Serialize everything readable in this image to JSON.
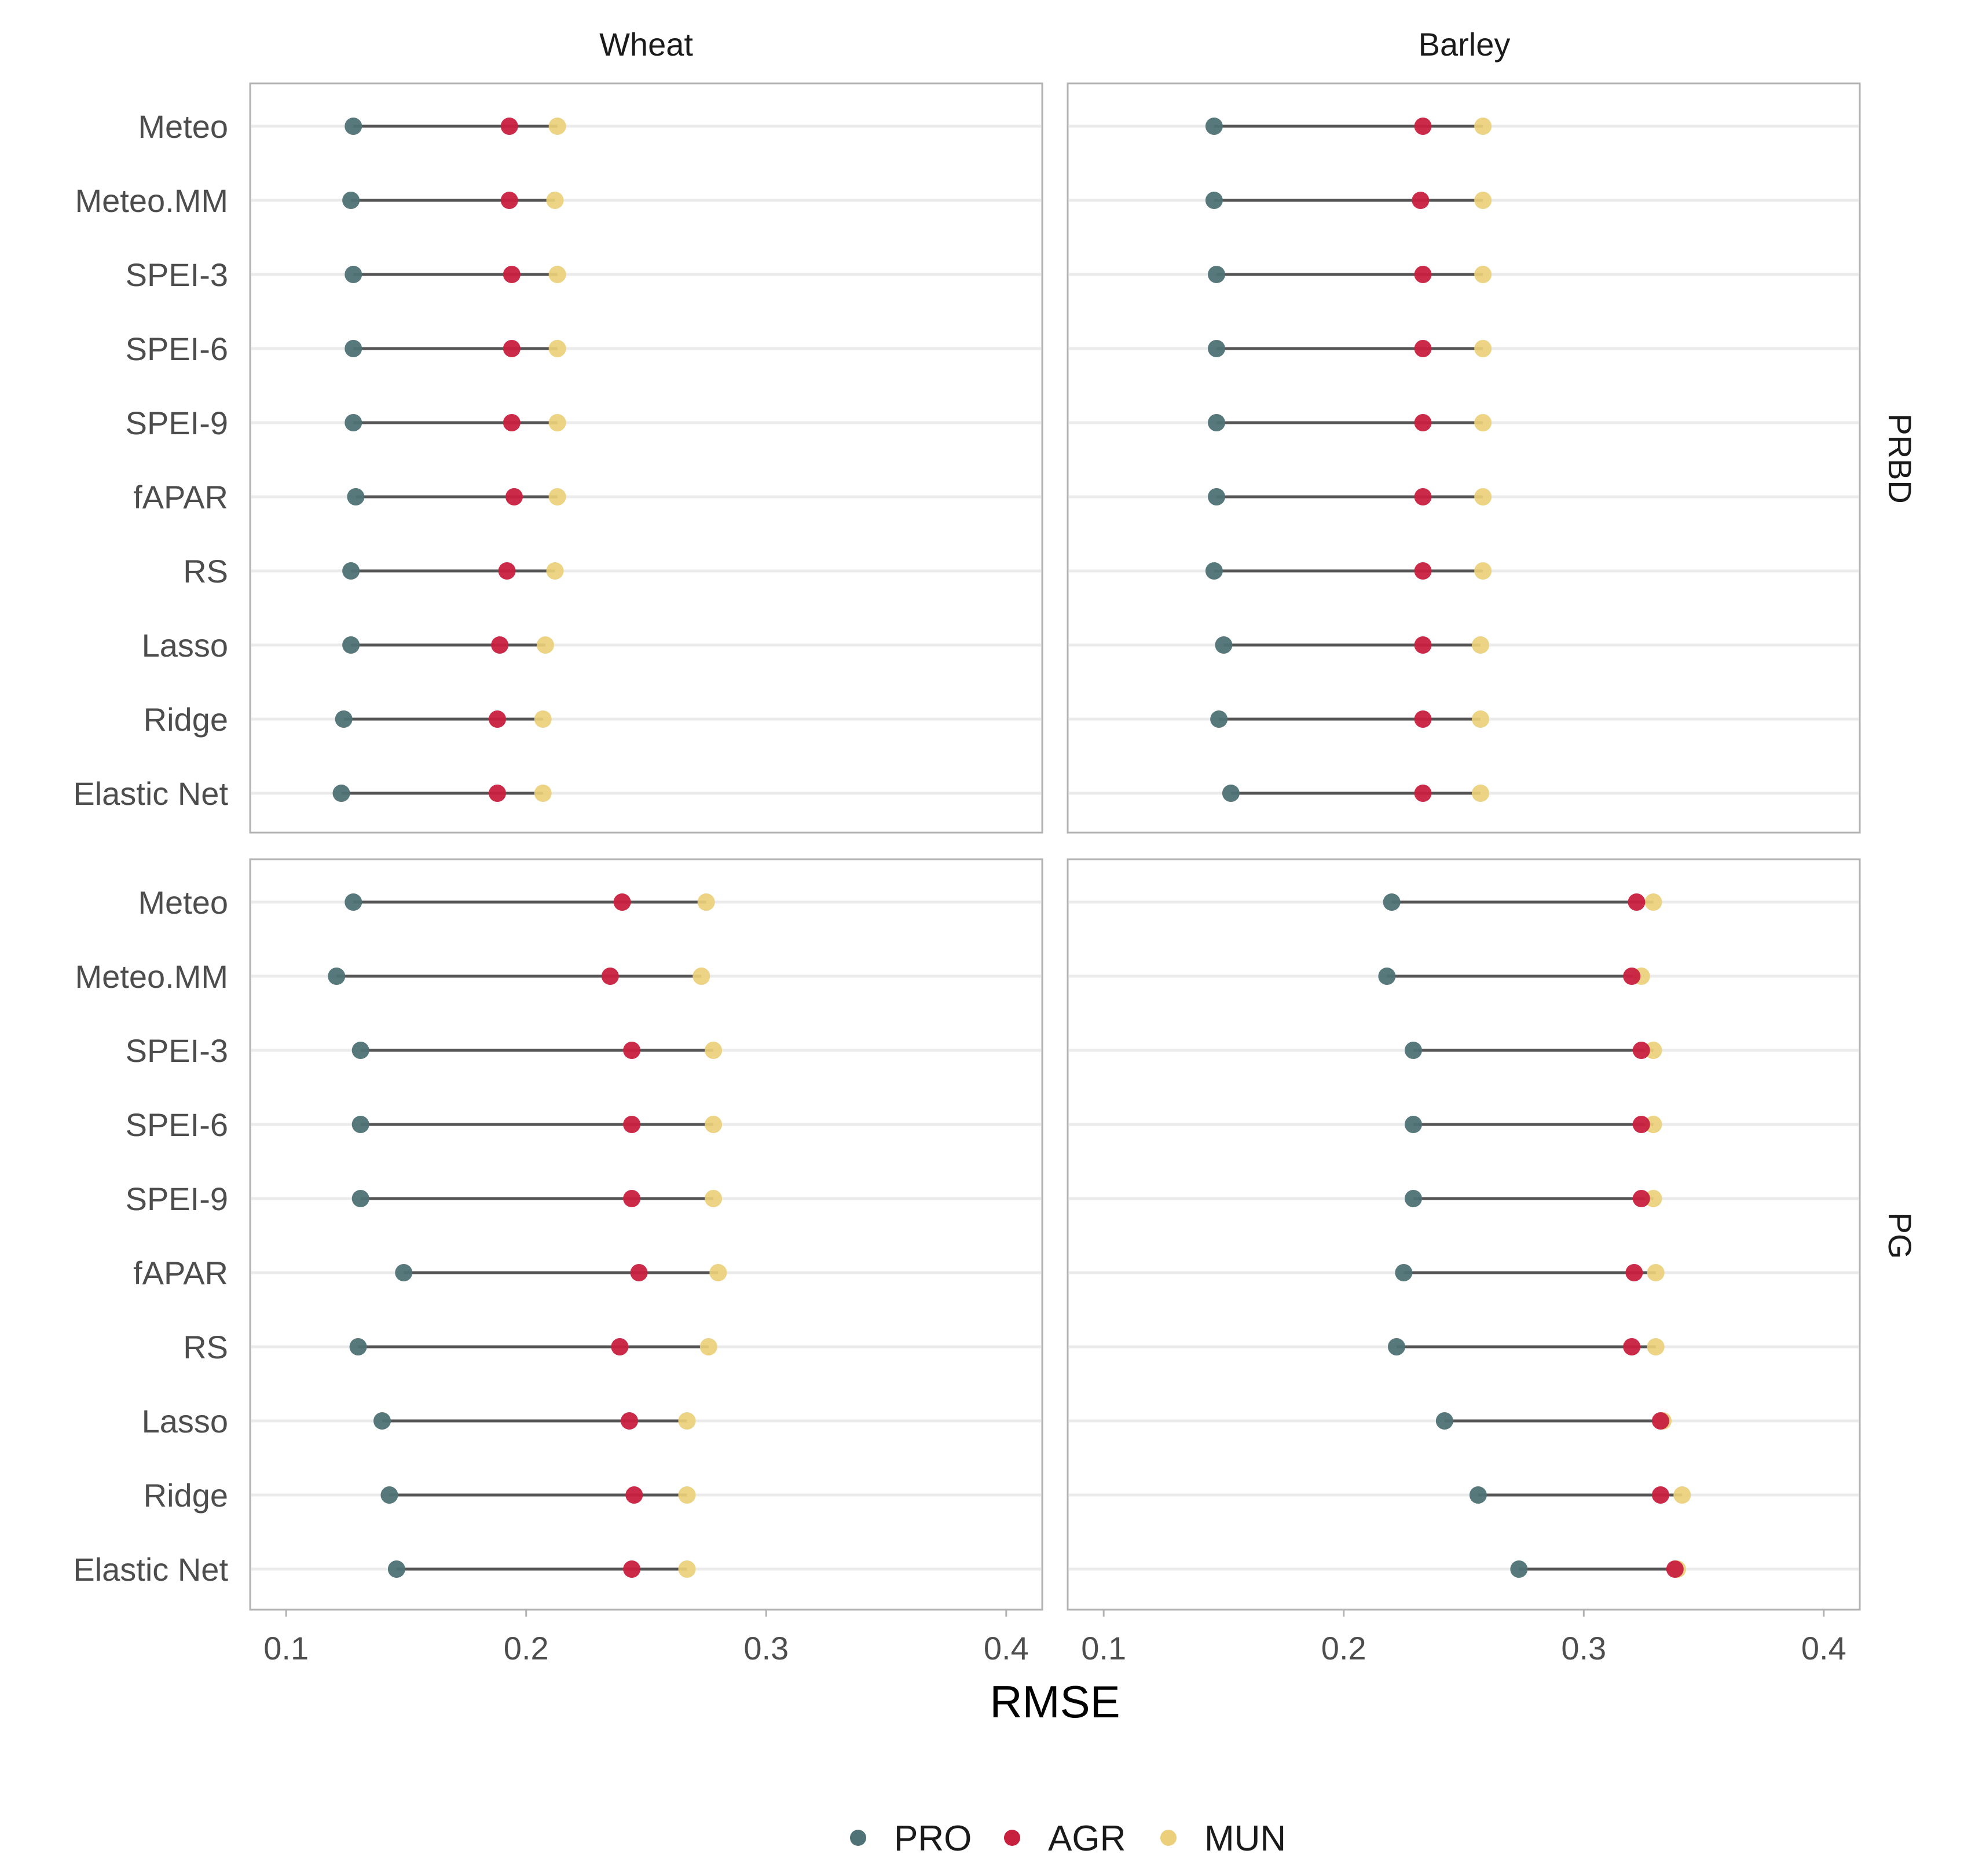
{
  "chart_data": {
    "type": "dumbbell",
    "xlabel": "RMSE",
    "xlim": [
      0.085,
      0.415
    ],
    "xticks": [
      0.1,
      0.2,
      0.3,
      0.4
    ],
    "xtick_labels": [
      "0.1",
      "0.2",
      "0.3",
      "0.4"
    ],
    "columns": [
      "Wheat",
      "Barley"
    ],
    "rows": [
      "PRBD",
      "PG"
    ],
    "methods": [
      "Meteo",
      "Meteo.MM",
      "SPEI-3",
      "SPEI-6",
      "SPEI-9",
      "fAPAR",
      "RS",
      "Lasso",
      "Ridge",
      "Elastic Net"
    ],
    "series": [
      {
        "name": "PRO",
        "color": "#4e7275"
      },
      {
        "name": "AGR",
        "color": "#c8203f"
      },
      {
        "name": "MUN",
        "color": "#ebcf7a"
      }
    ],
    "legend": {
      "position": "bottom",
      "items": [
        "PRO",
        "AGR",
        "MUN"
      ]
    },
    "panels": [
      {
        "column": "Wheat",
        "row": "PRBD",
        "PRO": [
          0.128,
          0.127,
          0.128,
          0.128,
          0.128,
          0.129,
          0.127,
          0.127,
          0.124,
          0.123
        ],
        "AGR": [
          0.193,
          0.193,
          0.194,
          0.194,
          0.194,
          0.195,
          0.192,
          0.189,
          0.188,
          0.188
        ],
        "MUN": [
          0.213,
          0.212,
          0.213,
          0.213,
          0.213,
          0.213,
          0.212,
          0.208,
          0.207,
          0.207
        ]
      },
      {
        "column": "Barley",
        "row": "PRBD",
        "PRO": [
          0.146,
          0.146,
          0.147,
          0.147,
          0.147,
          0.147,
          0.146,
          0.15,
          0.148,
          0.153
        ],
        "AGR": [
          0.233,
          0.232,
          0.233,
          0.233,
          0.233,
          0.233,
          0.233,
          0.233,
          0.233,
          0.233
        ],
        "MUN": [
          0.258,
          0.258,
          0.258,
          0.258,
          0.258,
          0.258,
          0.258,
          0.257,
          0.257,
          0.257
        ]
      },
      {
        "column": "Wheat",
        "row": "PG",
        "PRO": [
          0.128,
          0.121,
          0.131,
          0.131,
          0.131,
          0.149,
          0.13,
          0.14,
          0.143,
          0.146
        ],
        "AGR": [
          0.24,
          0.235,
          0.244,
          0.244,
          0.244,
          0.247,
          0.239,
          0.243,
          0.245,
          0.244
        ],
        "MUN": [
          0.275,
          0.273,
          0.278,
          0.278,
          0.278,
          0.28,
          0.276,
          0.267,
          0.267,
          0.267
        ]
      },
      {
        "column": "Barley",
        "row": "PG",
        "PRO": [
          0.22,
          0.218,
          0.229,
          0.229,
          0.229,
          0.225,
          0.222,
          0.242,
          0.256,
          0.273
        ],
        "AGR": [
          0.322,
          0.32,
          0.324,
          0.324,
          0.324,
          0.321,
          0.32,
          0.332,
          0.332,
          0.338
        ],
        "MUN": [
          0.329,
          0.324,
          0.329,
          0.329,
          0.329,
          0.33,
          0.33,
          0.333,
          0.341,
          0.339
        ]
      }
    ]
  }
}
